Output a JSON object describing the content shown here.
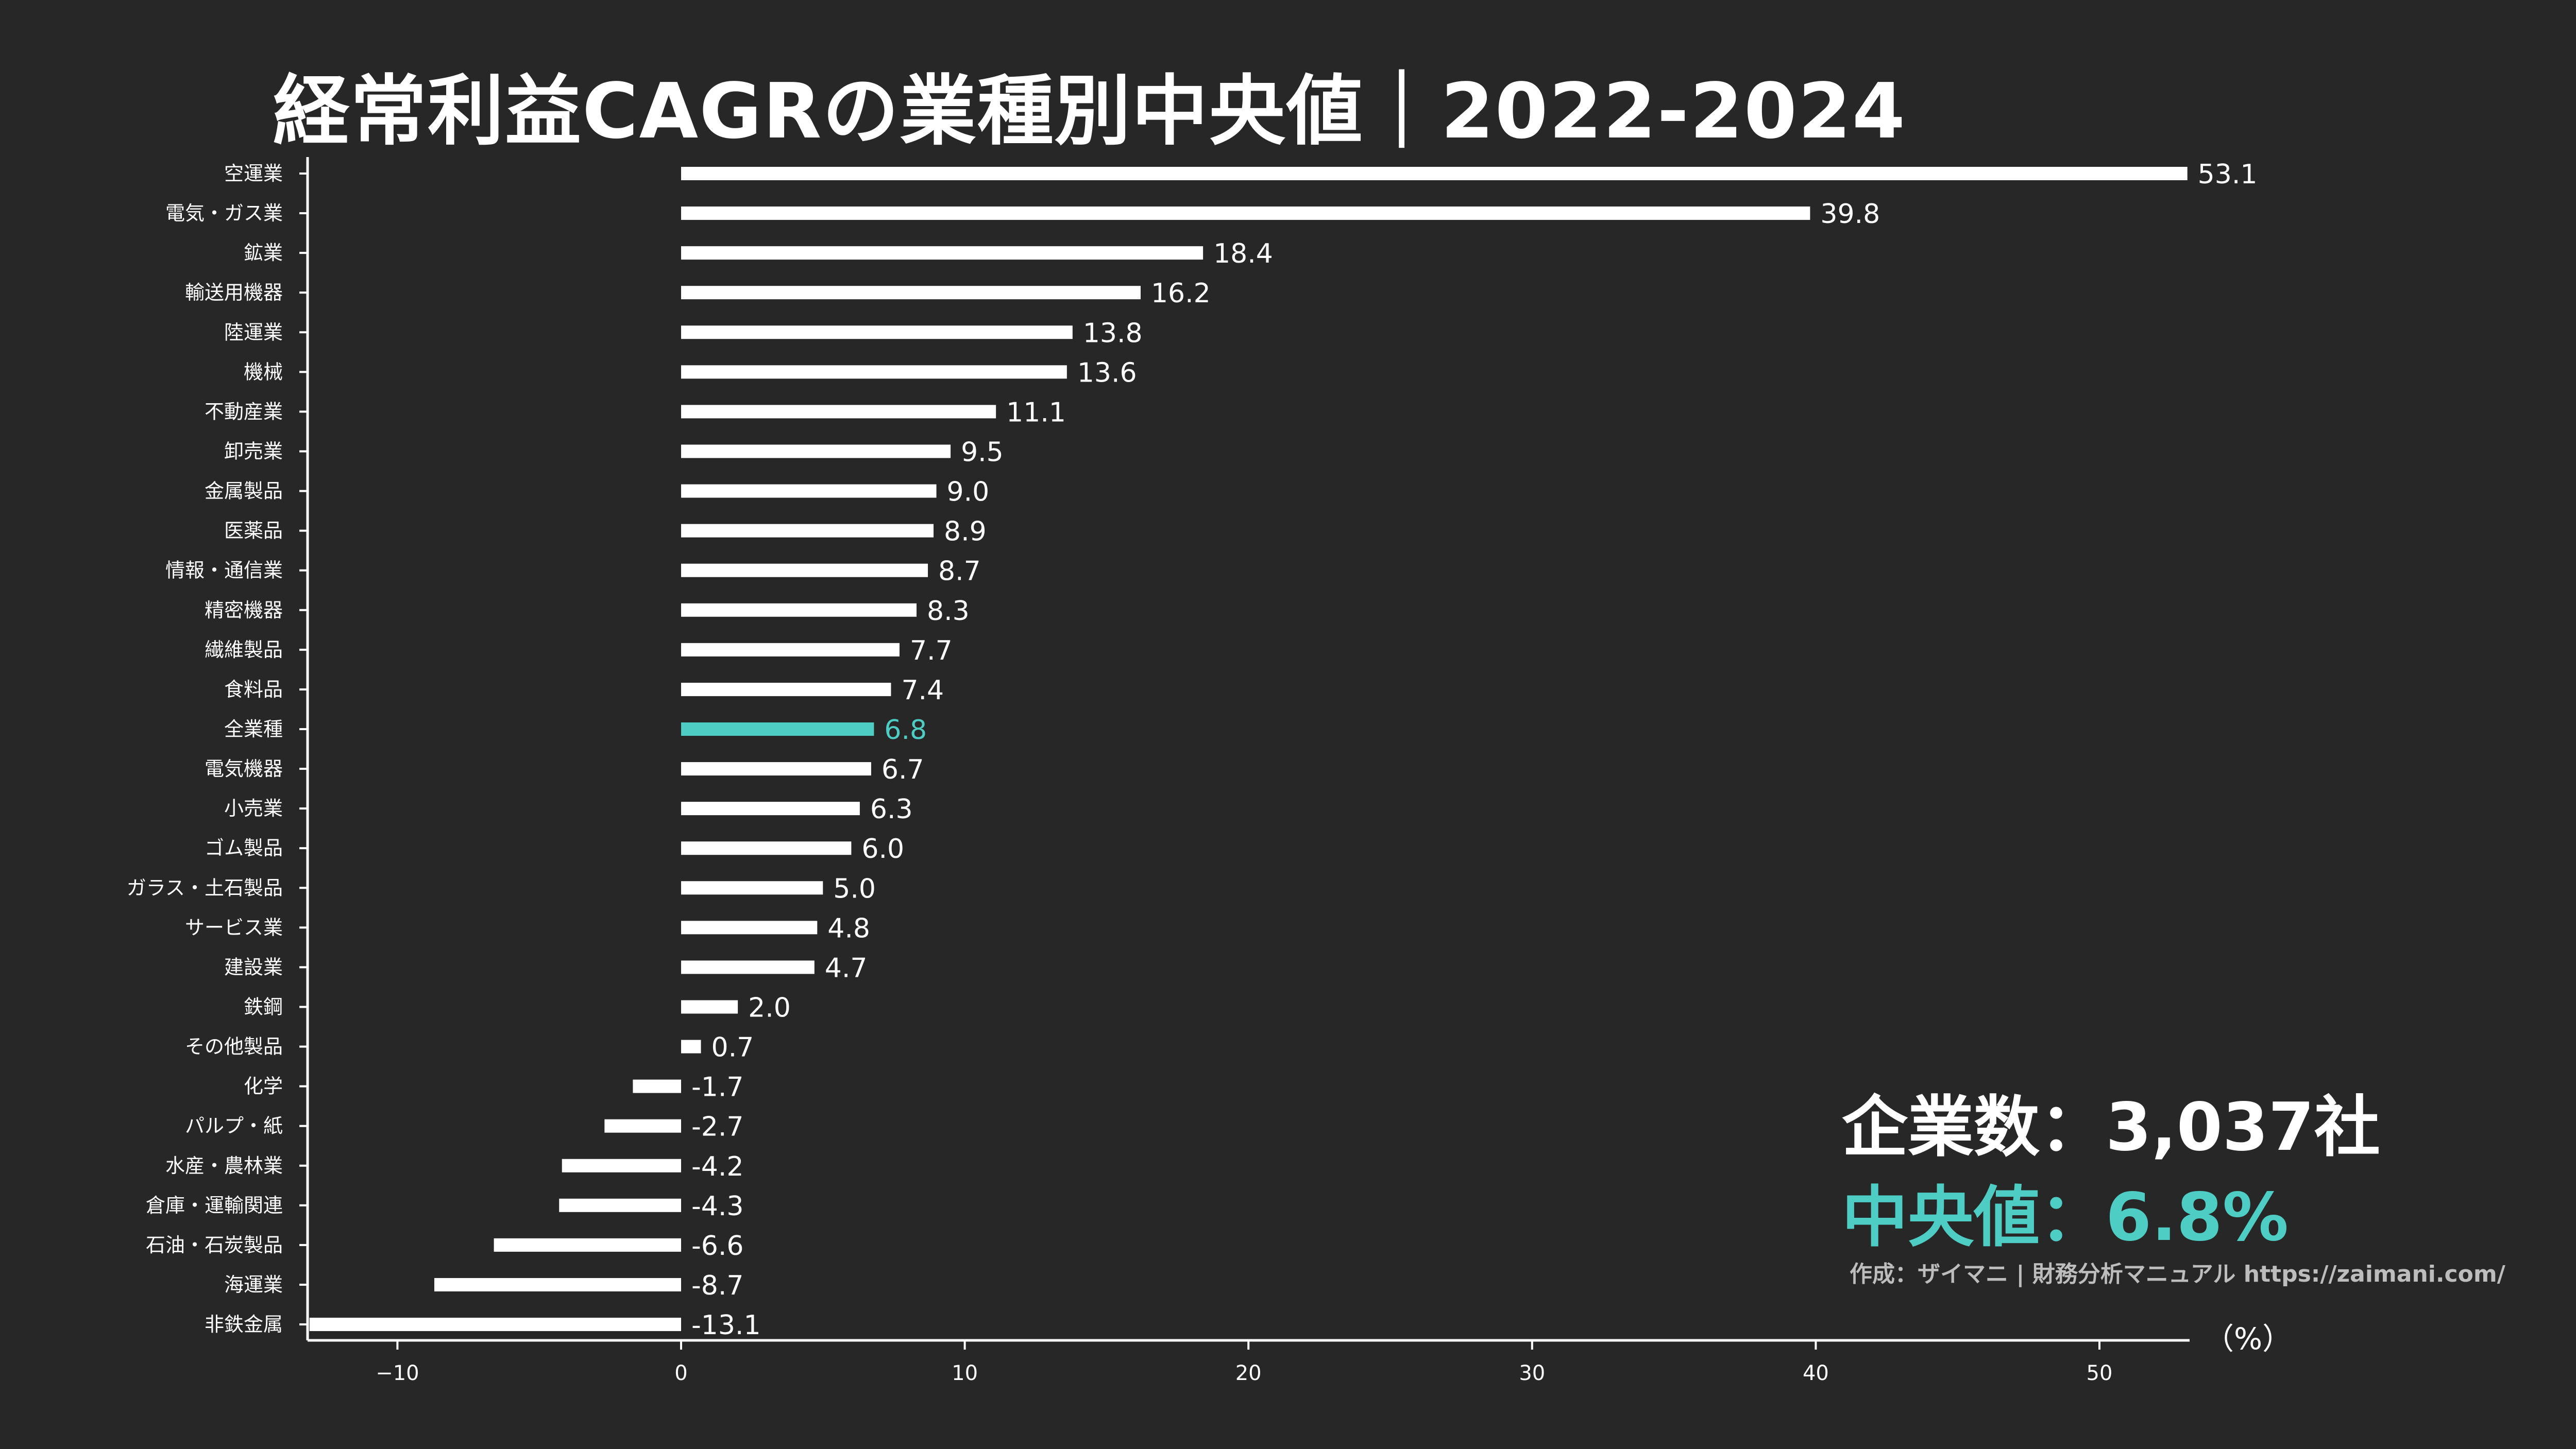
{
  "title": "経常利益CAGRの業種別中央値｜2022-2024",
  "summary": {
    "companies_label": "企業数：3,037社",
    "median_label": "中央値：6.8%"
  },
  "credit": "作成：ザイマニ | 財務分析マニュアル https://zaimani.com/",
  "colors": {
    "background": "#272727",
    "bar": "#ffffff",
    "highlight": "#4ecdc4"
  },
  "chart_data": {
    "type": "bar",
    "orientation": "horizontal",
    "categories": [
      "空運業",
      "電気・ガス業",
      "鉱業",
      "輸送用機器",
      "陸運業",
      "機械",
      "不動産業",
      "卸売業",
      "金属製品",
      "医薬品",
      "情報・通信業",
      "精密機器",
      "繊維製品",
      "食料品",
      "全業種",
      "電気機器",
      "小売業",
      "ゴム製品",
      "ガラス・土石製品",
      "サービス業",
      "建設業",
      "鉄鋼",
      "その他製品",
      "化学",
      "パルプ・紙",
      "水産・農林業",
      "倉庫・運輸関連",
      "石油・石炭製品",
      "海運業",
      "非鉄金属"
    ],
    "values": [
      53.1,
      39.8,
      18.4,
      16.2,
      13.8,
      13.6,
      11.1,
      9.5,
      9.0,
      8.9,
      8.7,
      8.3,
      7.7,
      7.4,
      6.8,
      6.7,
      6.3,
      6.0,
      5.0,
      4.8,
      4.7,
      2.0,
      0.7,
      -1.7,
      -2.7,
      -4.2,
      -4.3,
      -6.6,
      -8.7,
      -13.1
    ],
    "value_labels": [
      "53.1",
      "39.8",
      "18.4",
      "16.2",
      "13.8",
      "13.6",
      "11.1",
      "9.5",
      "9.0",
      "8.9",
      "8.7",
      "8.3",
      "7.7",
      "7.4",
      "6.8",
      "6.7",
      "6.3",
      "6.0",
      "5.0",
      "4.8",
      "4.7",
      "2.0",
      "0.7",
      "-1.7",
      "-2.7",
      "-4.2",
      "-4.3",
      "-6.6",
      "-8.7",
      "-13.1"
    ],
    "highlight_category": "全業種",
    "xlim": [
      -13.5,
      53.5
    ],
    "xticks": [
      -10,
      0,
      10,
      20,
      30,
      40,
      50
    ],
    "xtick_labels": [
      "−10",
      "0",
      "10",
      "20",
      "30",
      "40",
      "50"
    ],
    "xlabel": "（%）",
    "grid": false
  }
}
